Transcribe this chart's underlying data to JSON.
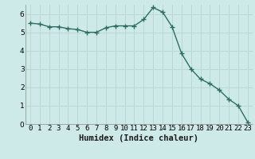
{
  "x": [
    0,
    1,
    2,
    3,
    4,
    5,
    6,
    7,
    8,
    9,
    10,
    11,
    12,
    13,
    14,
    15,
    16,
    17,
    18,
    19,
    20,
    21,
    22,
    23
  ],
  "y": [
    5.5,
    5.45,
    5.3,
    5.3,
    5.2,
    5.15,
    5.0,
    5.0,
    5.25,
    5.35,
    5.35,
    5.35,
    5.7,
    6.35,
    6.1,
    5.3,
    3.85,
    3.0,
    2.45,
    2.2,
    1.85,
    1.35,
    1.0,
    0.1
  ],
  "line_color": "#2d6e62",
  "marker": "+",
  "marker_size": 4,
  "marker_lw": 1.0,
  "bg_color": "#ceeae8",
  "grid_color": "#b8d8d5",
  "xlabel": "Humidex (Indice chaleur)",
  "xlim": [
    -0.5,
    23.5
  ],
  "ylim": [
    0,
    6.5
  ],
  "xtick_labels": [
    "0",
    "1",
    "2",
    "3",
    "4",
    "5",
    "6",
    "7",
    "8",
    "9",
    "10",
    "11",
    "12",
    "13",
    "14",
    "15",
    "16",
    "17",
    "18",
    "19",
    "20",
    "21",
    "22",
    "23"
  ],
  "ytick_values": [
    0,
    1,
    2,
    3,
    4,
    5,
    6
  ],
  "xlabel_fontsize": 7.5,
  "tick_fontsize": 6.5,
  "line_width": 1.0
}
